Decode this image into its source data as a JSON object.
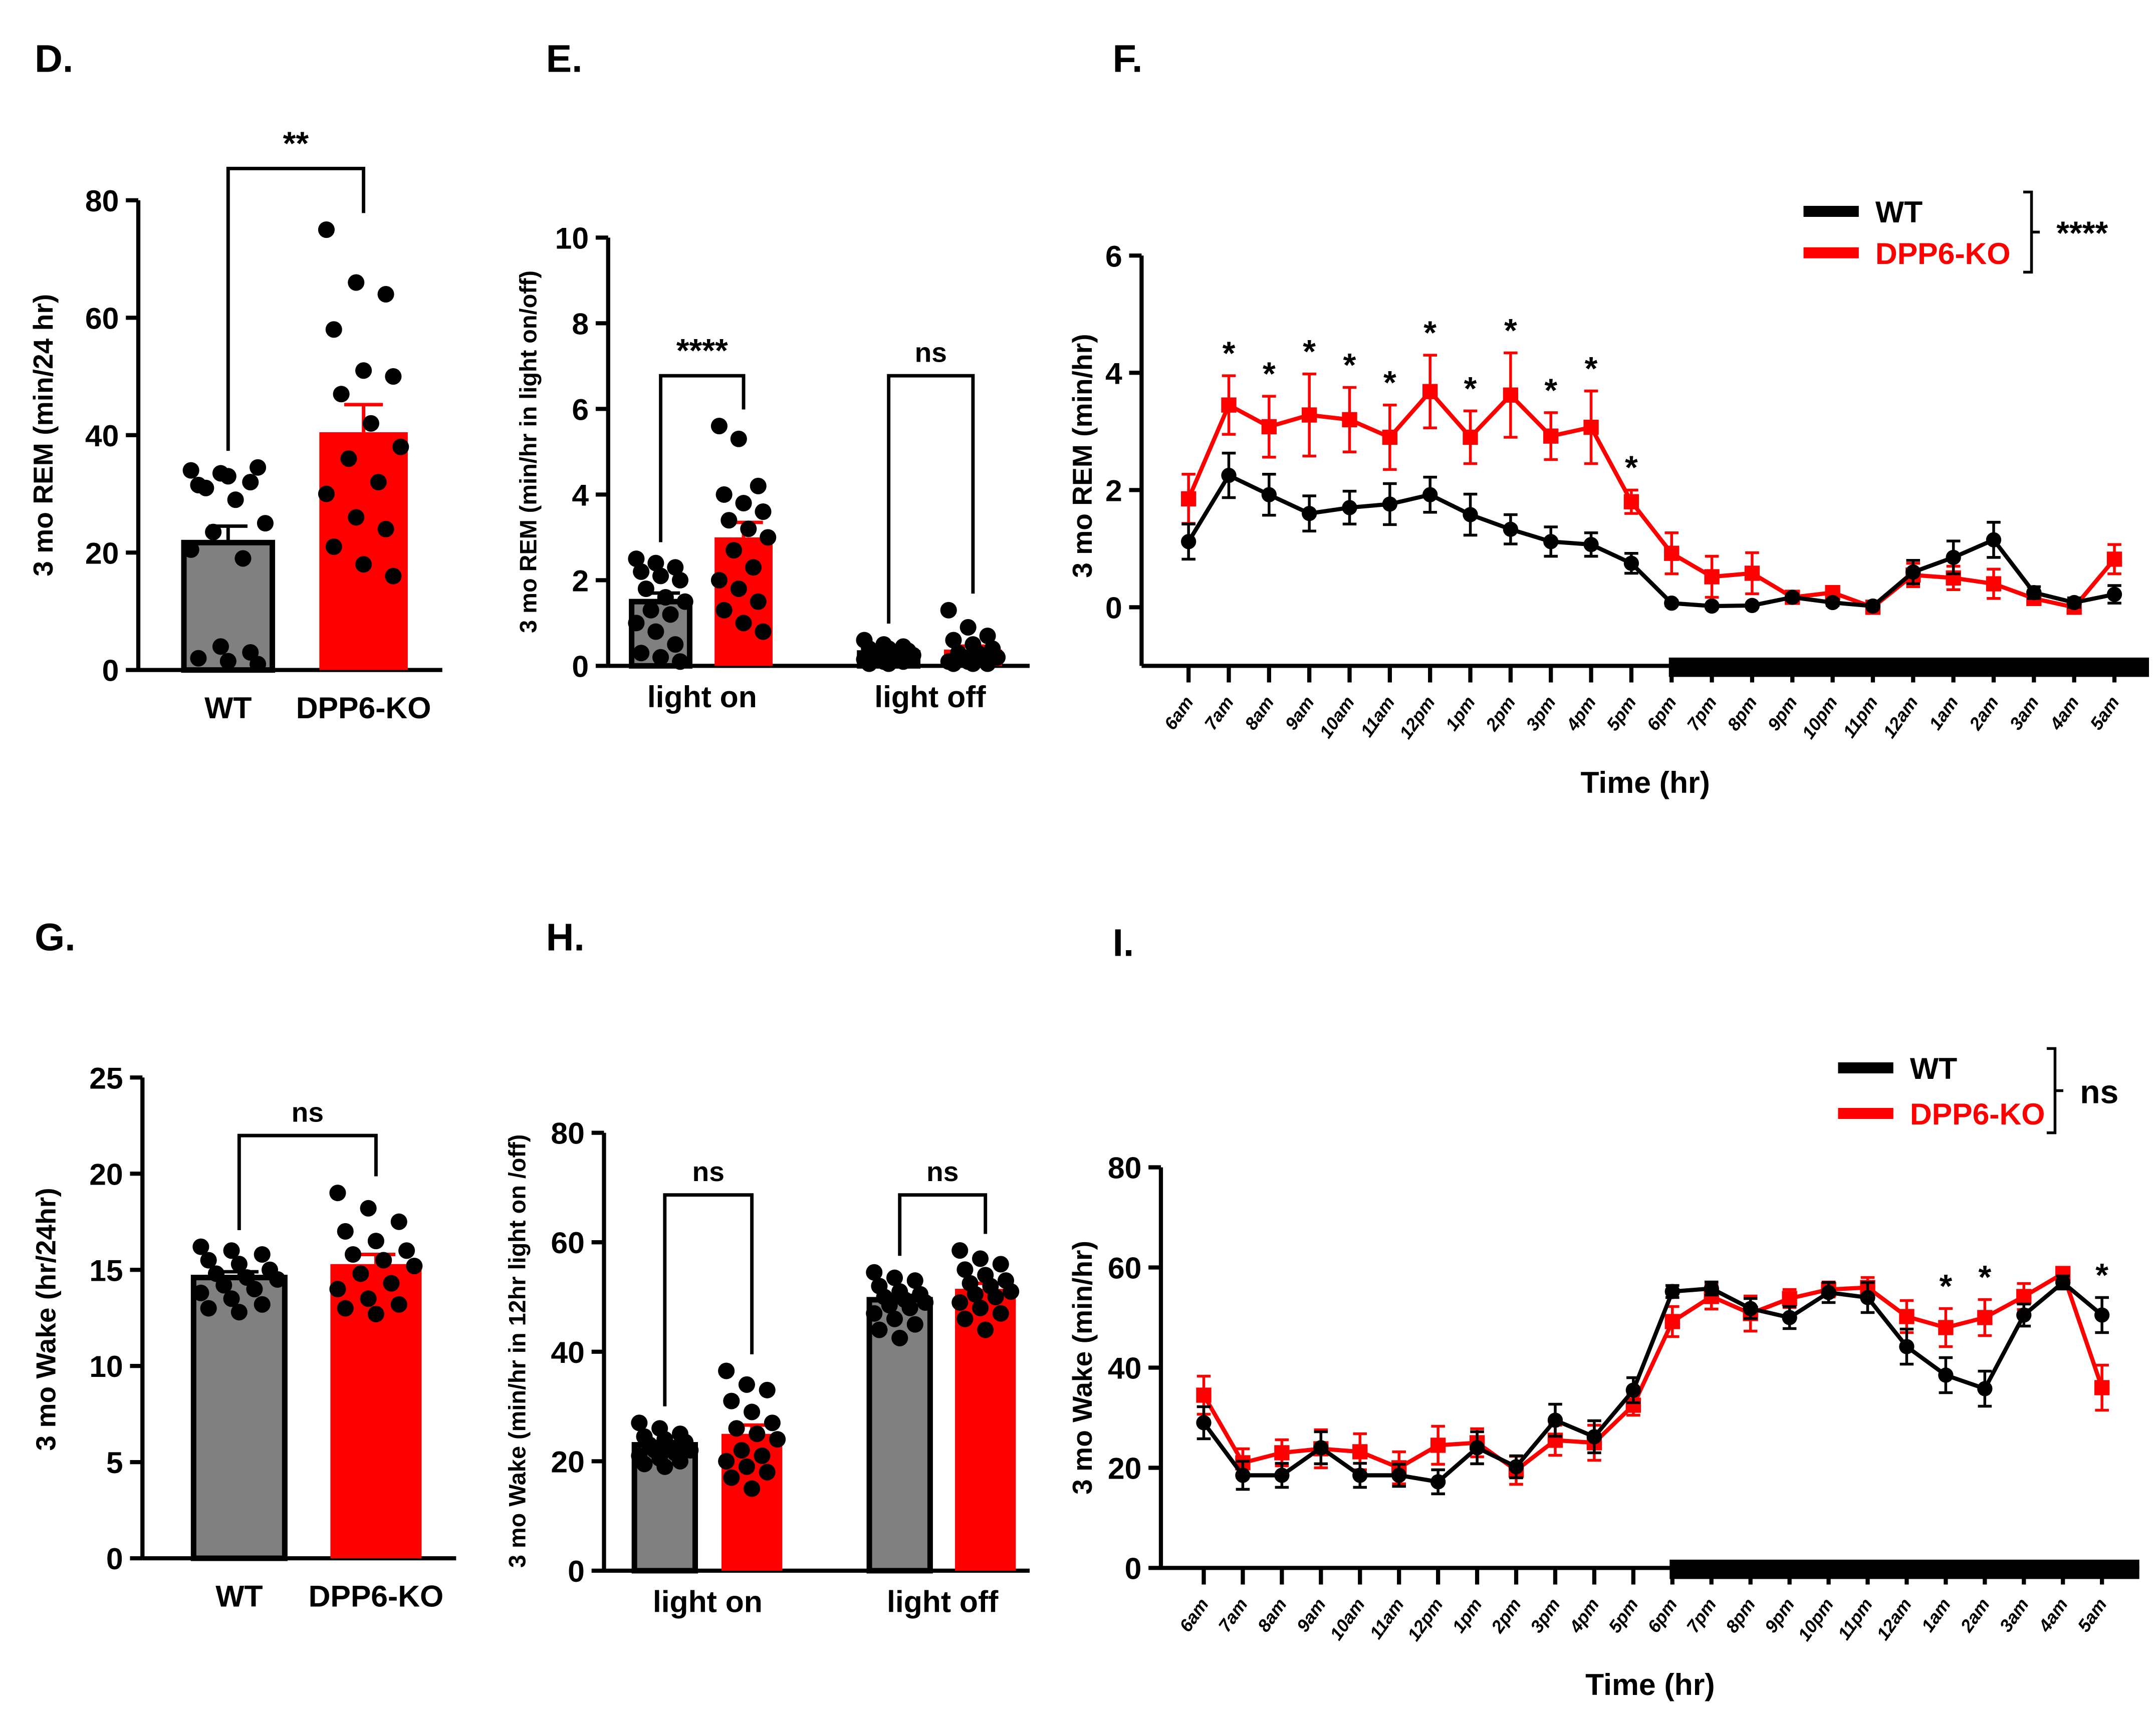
{
  "colors": {
    "wt": "#808080",
    "wt_line": "#000000",
    "ko": "#ff0000"
  },
  "chart_data": [
    {
      "panel": "D.",
      "type": "bar",
      "ylabel": "3 mo REM (min/24 hr)",
      "ylim": [
        0,
        80
      ],
      "yticks": [
        0,
        20,
        40,
        60,
        80
      ],
      "groups": [
        {
          "label": "",
          "bars": [
            {
              "name": "WT",
              "mean": 21.7,
              "sem": 2.8,
              "points": [
                34,
                33.5,
                32,
                31.5,
                33,
                34.5,
                31,
                29,
                25,
                23.5,
                19,
                20.5,
                4,
                3,
                2,
                1.5,
                1
              ]
            },
            {
              "name": "DPP6-KO",
              "mean": 40.5,
              "sem": 4.7,
              "points": [
                75,
                66,
                64,
                58,
                51,
                50,
                47,
                42,
                38,
                36,
                32,
                30,
                26,
                24,
                21,
                18,
                16
              ]
            }
          ],
          "sig": "**"
        }
      ]
    },
    {
      "panel": "E.",
      "type": "bar",
      "ylabel": "3 mo REM (min/hr in light on/off)",
      "ylim": [
        0,
        10
      ],
      "yticks": [
        0,
        2,
        4,
        6,
        8,
        10
      ],
      "groups": [
        {
          "label": "light on",
          "sig": "****",
          "bars": [
            {
              "name": "WT",
              "mean": 1.5,
              "sem": 0.2,
              "points": [
                2.5,
                2.4,
                2.3,
                2.2,
                2.1,
                2.0,
                1.8,
                1.6,
                1.5,
                1.3,
                1.2,
                1.0,
                0.8,
                0.5,
                0.3,
                0.2,
                0.1
              ]
            },
            {
              "name": "DPP6-KO",
              "mean": 3.0,
              "sem": 0.35,
              "points": [
                5.6,
                5.3,
                4.2,
                4.0,
                3.8,
                3.6,
                3.4,
                3.2,
                3.0,
                2.7,
                2.3,
                2.0,
                1.8,
                1.5,
                1.3,
                1.0,
                0.8
              ]
            }
          ]
        },
        {
          "label": "light off",
          "sig": "ns",
          "bars": [
            {
              "name": "WT",
              "mean": 0.3,
              "sem": 0.04,
              "points": [
                0.6,
                0.5,
                0.45,
                0.4,
                0.4,
                0.35,
                0.3,
                0.3,
                0.25,
                0.2,
                0.2,
                0.15,
                0.1,
                0.1,
                0.05,
                0.05
              ]
            },
            {
              "name": "DPP6-KO",
              "mean": 0.38,
              "sem": 0.08,
              "points": [
                1.3,
                0.9,
                0.7,
                0.6,
                0.5,
                0.4,
                0.3,
                0.3,
                0.2,
                0.2,
                0.15,
                0.1,
                0.1,
                0.05,
                0.05,
                0.05
              ]
            }
          ]
        }
      ]
    },
    {
      "panel": "F.",
      "type": "line",
      "ylabel": "3 mo REM (min/hr)",
      "xlabel": "Time (hr)",
      "ylim": [
        -1,
        6
      ],
      "yticks": [
        0,
        2,
        4,
        6
      ],
      "x": [
        "6am",
        "7am",
        "8am",
        "9am",
        "10am",
        "11am",
        "12pm",
        "1pm",
        "2pm",
        "3pm",
        "4pm",
        "5pm",
        "6pm",
        "7pm",
        "8pm",
        "9pm",
        "10pm",
        "11pm",
        "12am",
        "1am",
        "2am",
        "3am",
        "4am",
        "5am"
      ],
      "dark_phase": [
        "6pm",
        "5am"
      ],
      "overall_sig": "****",
      "stars": [
        1,
        2,
        3,
        4,
        5,
        6,
        7,
        8,
        9,
        10,
        11
      ],
      "series": [
        {
          "name": "WT",
          "values": [
            1.12,
            2.25,
            1.92,
            1.6,
            1.7,
            1.76,
            1.92,
            1.58,
            1.33,
            1.12,
            1.07,
            0.75,
            0.07,
            0.02,
            0.03,
            0.17,
            0.08,
            0.02,
            0.6,
            0.85,
            1.15,
            0.25,
            0.08,
            0.22
          ],
          "sem": [
            0.3,
            0.38,
            0.35,
            0.3,
            0.28,
            0.35,
            0.3,
            0.35,
            0.25,
            0.25,
            0.2,
            0.17,
            0.04,
            0.03,
            0.03,
            0.05,
            0.05,
            0.03,
            0.2,
            0.28,
            0.3,
            0.1,
            0.08,
            0.15
          ]
        },
        {
          "name": "DPP6-KO",
          "values": [
            1.85,
            3.45,
            3.08,
            3.28,
            3.2,
            2.9,
            3.68,
            2.9,
            3.62,
            2.92,
            3.07,
            1.8,
            0.92,
            0.52,
            0.58,
            0.17,
            0.25,
            0.0,
            0.55,
            0.5,
            0.4,
            0.15,
            0.0,
            0.82
          ],
          "sem": [
            0.42,
            0.5,
            0.52,
            0.7,
            0.55,
            0.55,
            0.62,
            0.45,
            0.72,
            0.4,
            0.62,
            0.2,
            0.35,
            0.35,
            0.35,
            0.05,
            0.05,
            0.03,
            0.2,
            0.2,
            0.25,
            0.1,
            0.05,
            0.25
          ]
        }
      ]
    },
    {
      "panel": "G.",
      "type": "bar",
      "ylabel": "3 mo Wake (hr/24hr)",
      "ylim": [
        0,
        25
      ],
      "yticks": [
        0,
        5,
        10,
        15,
        20,
        25
      ],
      "groups": [
        {
          "label": "",
          "sig": "ns",
          "bars": [
            {
              "name": "WT",
              "mean": 14.6,
              "sem": 0.3,
              "points": [
                16.2,
                16,
                15.8,
                15.5,
                15.3,
                15,
                14.8,
                14.6,
                14.5,
                14.2,
                14,
                13.8,
                13.5,
                13.2,
                13,
                12.8
              ]
            },
            {
              "name": "DPP6-KO",
              "mean": 15.3,
              "sem": 0.5,
              "points": [
                19,
                18.2,
                17.5,
                17,
                16.5,
                16,
                15.8,
                15.5,
                15.2,
                14.8,
                14.3,
                14,
                13.5,
                13.2,
                13,
                12.7
              ]
            }
          ]
        }
      ]
    },
    {
      "panel": "H.",
      "type": "bar",
      "ylabel": "3 mo Wake (min/hr in 12hr light on /off)",
      "ylim": [
        0,
        80
      ],
      "yticks": [
        0,
        20,
        40,
        60,
        80
      ],
      "groups": [
        {
          "label": "light on",
          "sig": "ns",
          "bars": [
            {
              "name": "WT",
              "mean": 23,
              "sem": 0.6,
              "points": [
                27,
                26,
                25,
                24.5,
                24,
                23.5,
                23,
                22.5,
                22,
                22,
                21.5,
                21,
                20.5,
                20,
                19.5,
                19
              ]
            },
            {
              "name": "DPP6-KO",
              "mean": 25,
              "sem": 1.6,
              "points": [
                36.5,
                34,
                33,
                31,
                29,
                27,
                26,
                25,
                24,
                22,
                21,
                20,
                19,
                18,
                17,
                15
              ]
            }
          ]
        },
        {
          "label": "light off",
          "sig": "ns",
          "bars": [
            {
              "name": "WT",
              "mean": 49.5,
              "sem": 0.8,
              "points": [
                54.5,
                53.5,
                53,
                52,
                51,
                50.5,
                50,
                49.5,
                49,
                48.5,
                48,
                47,
                46,
                45,
                44,
                42.5
              ]
            },
            {
              "name": "DPP6-KO",
              "mean": 51.5,
              "sem": 1.0,
              "points": [
                58.5,
                57,
                56,
                55,
                54,
                53,
                52.5,
                52,
                51,
                50.5,
                50,
                49,
                48,
                47,
                46,
                44
              ]
            }
          ]
        }
      ]
    },
    {
      "panel": "I.",
      "type": "line",
      "ylabel": "3 mo Wake (min/hr)",
      "xlabel": "Time (hr)",
      "ylim": [
        0,
        80
      ],
      "yticks": [
        0,
        20,
        40,
        60,
        80
      ],
      "x": [
        "6am",
        "7am",
        "8am",
        "9am",
        "10am",
        "11am",
        "12pm",
        "1pm",
        "2pm",
        "3pm",
        "4pm",
        "5pm",
        "6pm",
        "7pm",
        "8pm",
        "9pm",
        "10pm",
        "11pm",
        "12am",
        "1am",
        "2am",
        "3am",
        "4am",
        "5am"
      ],
      "dark_phase": [
        "6pm",
        "5am"
      ],
      "overall_sig": "ns",
      "stars": [
        19,
        20,
        23
      ],
      "series": [
        {
          "name": "WT",
          "values": [
            29,
            18.5,
            18.5,
            24,
            18.5,
            18.5,
            17.2,
            24,
            20.2,
            29.5,
            26.2,
            35.5,
            55.2,
            55.8,
            51.8,
            50,
            55,
            54,
            44.2,
            38.5,
            35.8,
            50.5,
            57,
            50.5
          ],
          "sem": [
            3.2,
            2.8,
            2.4,
            3.2,
            2.4,
            2.2,
            2.4,
            3.2,
            2.2,
            3.2,
            3.2,
            2.5,
            1.2,
            1.3,
            2,
            2.2,
            2,
            3,
            3.5,
            3.5,
            3.5,
            2.2,
            1.3,
            3.5
          ]
        },
        {
          "name": "DPP6-KO",
          "values": [
            34.5,
            21,
            23,
            23.8,
            23.2,
            20,
            24.5,
            25,
            19.5,
            25.5,
            25,
            32.5,
            49.2,
            54.2,
            50.8,
            53.8,
            55.6,
            56,
            50.2,
            48,
            50,
            54.2,
            58.8,
            36
          ],
          "sem": [
            3.8,
            2.8,
            2.6,
            3.8,
            3.6,
            3.2,
            3.8,
            2.8,
            2.8,
            3,
            3.5,
            2,
            3,
            2.5,
            3.5,
            1.8,
            1.5,
            2,
            3.2,
            3.8,
            3.6,
            2.6,
            1,
            4.5
          ]
        }
      ]
    }
  ]
}
